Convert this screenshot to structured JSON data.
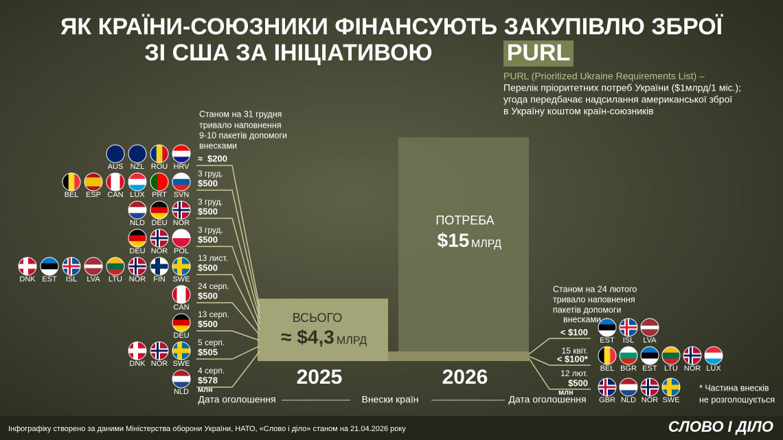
{
  "title": {
    "line1": "ЯК КРАЇНИ-СОЮЗНИКИ ФІНАНСУЮТЬ ЗАКУПІВЛЮ ЗБРОЇ",
    "line2": "ЗІ США ЗА ІНІЦІАТИВОЮ",
    "highlight": "PURL"
  },
  "definition": [
    "PURL (Prioritized Ukraine Requirements List) –",
    "Перелік пріоритетних потреб України ($1млрд/1 міс.);",
    "угода передбачає надсилання американської зброї",
    "в Україну коштом країн-союзників"
  ],
  "left_note": [
    "Станом на 31 грудня",
    "тривало наповнення",
    "9-10 пакетів допомоги",
    "внесками"
  ],
  "packages_2025": [
    {
      "date": "≈",
      "amount": "$200",
      "countries": [
        "AUS",
        "NZL",
        "ROU",
        "HRV"
      ]
    },
    {
      "date": "3 груд.",
      "amount": "$500",
      "countries": [
        "BEL",
        "ESP",
        "CAN",
        "LUX",
        "PRT",
        "SVN"
      ]
    },
    {
      "date": "3 груд.",
      "amount": "$500",
      "countries": [
        "NLD",
        "DEU",
        "NOR"
      ]
    },
    {
      "date": "3 груд.",
      "amount": "$500",
      "countries": [
        "DEU",
        "NOR",
        "POL"
      ]
    },
    {
      "date": "13 лист.",
      "amount": "$500",
      "countries": [
        "DNK",
        "EST",
        "ISL",
        "LVA",
        "LTU",
        "NOR",
        "FIN",
        "SWE"
      ]
    },
    {
      "date": "24 серп.",
      "amount": "$500",
      "countries": [
        "CAN"
      ]
    },
    {
      "date": "13 серп.",
      "amount": "$500",
      "countries": [
        "DEU"
      ]
    },
    {
      "date": "5 серп.",
      "amount": "$505",
      "countries": [
        "DNK",
        "NOR",
        "SWE"
      ]
    },
    {
      "date": "4 серп.",
      "amount": "$578",
      "countries": [
        "NLD"
      ]
    }
  ],
  "unit_2025": "млн",
  "total_2025": {
    "label": "ВСЬОГО",
    "value": "≈ $4,3",
    "unit": "МЛРД",
    "year": "2025"
  },
  "need_2026": {
    "label": "ПОТРЕБА",
    "value": "$15",
    "unit": "МЛРД",
    "year": "2026"
  },
  "right_note": [
    "Станом на 24 лютого",
    "тривало наповнення",
    "пакетів допомоги",
    "внесками"
  ],
  "packages_2026": [
    {
      "amount": "< $100",
      "countries": [
        "EST",
        "ISL",
        "LVA"
      ]
    },
    {
      "date": "15 квіт.",
      "amount": "< $100*",
      "countries": [
        "BEL",
        "BGR",
        "EST",
        "LTU",
        "NOR",
        "LUX"
      ]
    },
    {
      "date": "12 лют.",
      "amount": "$500",
      "countries": [
        "GBR",
        "NLD",
        "NOR",
        "SWE"
      ]
    }
  ],
  "unit_2026": "млн",
  "footnote": [
    "* Частина внесків",
    "не розголошується"
  ],
  "axis": {
    "left": "Дата оголошення",
    "middle": "Внески країн",
    "right": "Дата оголошення"
  },
  "source": "Інфографіку створено за даними Міністерства оборони України, НАТО, «Слово і діло» станом на 21.04.2026 року",
  "logo": "СЛОВО І ДІЛО"
}
